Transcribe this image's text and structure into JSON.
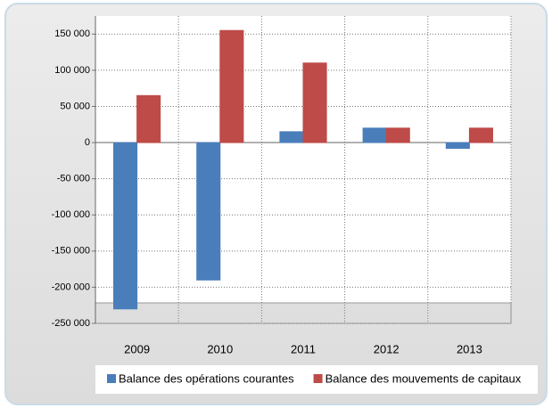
{
  "chart_data": {
    "type": "bar",
    "categories": [
      "2009",
      "2010",
      "2011",
      "2012",
      "2013"
    ],
    "series": [
      {
        "name": "Balance des opérations courantes",
        "color": "#4a7ebb",
        "values": [
          -230000,
          -190000,
          15000,
          20000,
          -8000
        ]
      },
      {
        "name": "Balance des mouvements de capitaux",
        "color": "#be4b48",
        "values": [
          65000,
          155000,
          110000,
          20000,
          20000
        ]
      }
    ],
    "ylim": [
      -250000,
      175000
    ],
    "yticks": [
      {
        "value": -250000,
        "label": "-250 000"
      },
      {
        "value": -200000,
        "label": "-200 000"
      },
      {
        "value": -150000,
        "label": "-150 000"
      },
      {
        "value": -100000,
        "label": "-100 000"
      },
      {
        "value": -50000,
        "label": "-50 000"
      },
      0,
      {
        "value": 50000,
        "label": "50 000"
      },
      {
        "value": 100000,
        "label": "100 000"
      },
      {
        "value": 150000,
        "label": "150 000"
      }
    ],
    "grid": true,
    "legend": "bottom"
  }
}
